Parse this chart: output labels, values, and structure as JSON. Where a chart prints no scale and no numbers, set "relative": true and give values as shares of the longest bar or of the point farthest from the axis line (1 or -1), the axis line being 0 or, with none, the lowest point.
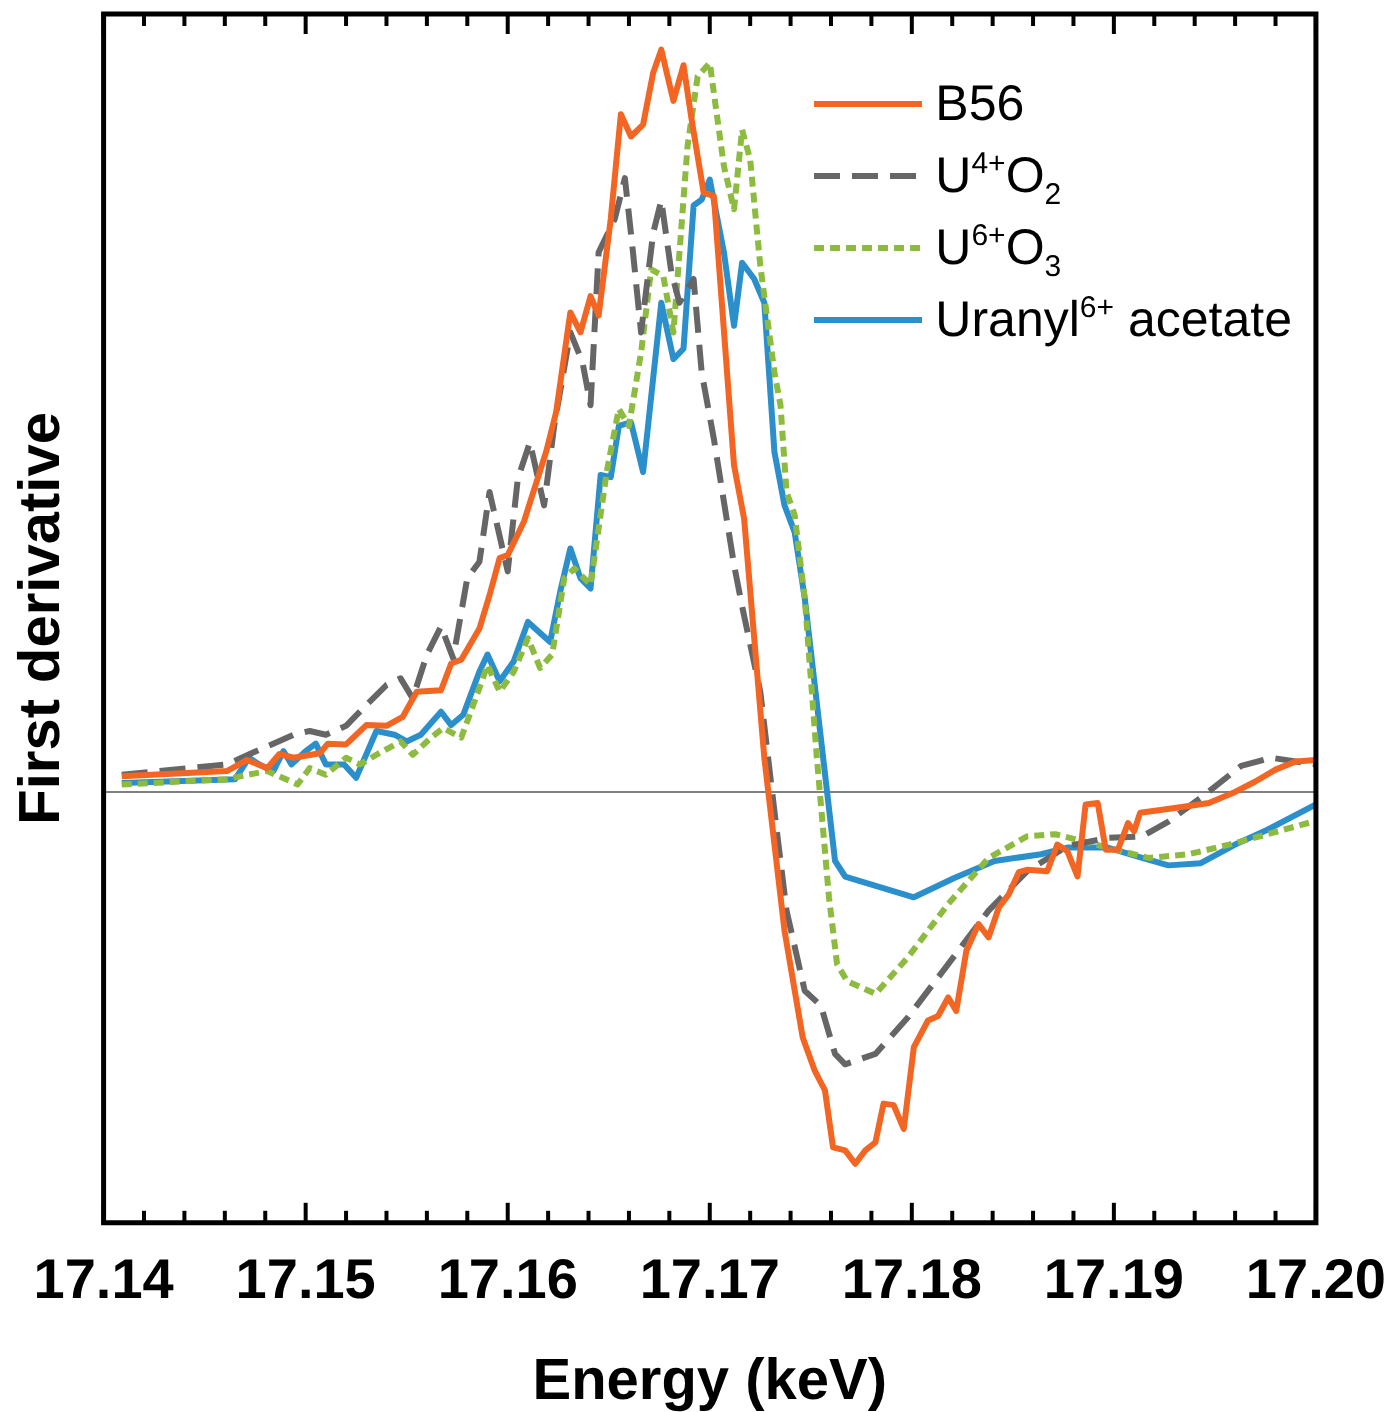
{
  "chart_data": {
    "type": "line",
    "xlabel": "Energy (keV)",
    "ylabel": "First derivative",
    "relative": true,
    "legend": "top right",
    "tick_labels": "x",
    "xlim": [
      17.14,
      17.2
    ],
    "xticks": [
      17.14,
      {
        "value": 17.142,
        "label": null
      },
      {
        "value": 17.144,
        "label": null
      },
      {
        "value": 17.146,
        "label": null
      },
      {
        "value": 17.148,
        "label": null
      },
      17.15,
      {
        "value": 17.152,
        "label": null
      },
      {
        "value": 17.154,
        "label": null
      },
      {
        "value": 17.156,
        "label": null
      },
      {
        "value": 17.158,
        "label": null
      },
      17.16,
      {
        "value": 17.162,
        "label": null
      },
      {
        "value": 17.164,
        "label": null
      },
      {
        "value": 17.166,
        "label": null
      },
      {
        "value": 17.168,
        "label": null
      },
      17.17,
      {
        "value": 17.172,
        "label": null
      },
      {
        "value": 17.174,
        "label": null
      },
      {
        "value": 17.176,
        "label": null
      },
      {
        "value": 17.178,
        "label": null
      },
      17.18,
      {
        "value": 17.182,
        "label": null
      },
      {
        "value": 17.184,
        "label": null
      },
      {
        "value": 17.186,
        "label": null
      },
      {
        "value": 17.188,
        "label": null
      },
      17.19,
      {
        "value": 17.192,
        "label": null
      },
      {
        "value": 17.194,
        "label": null
      },
      {
        "value": 17.196,
        "label": null
      },
      {
        "value": 17.198,
        "label": null
      },
      {
        "value": 17.2,
        "label": "17.20"
      }
    ],
    "ref_lines": [
      {
        "axis": "y",
        "value": 0,
        "color": "#808080"
      }
    ],
    "series": [
      {
        "name": "B56",
        "color": "#f26522",
        "line_style": "solid",
        "x": [
          17.1409,
          17.1461,
          17.1471,
          17.1481,
          17.1487,
          17.1494,
          17.1507,
          17.1511,
          17.152,
          17.153,
          17.154,
          17.1548,
          17.1555,
          17.1567,
          17.1572,
          17.1577,
          17.1586,
          17.1591,
          17.1596,
          17.16,
          17.1608,
          17.1619,
          17.1624,
          17.1631,
          17.1636,
          17.1641,
          17.1645,
          17.1651,
          17.1656,
          17.1661,
          17.1667,
          17.1672,
          17.1676,
          17.1682,
          17.1687,
          17.1691,
          17.1697,
          17.1702,
          17.1712,
          17.1717,
          17.1727,
          17.1737,
          17.1746,
          17.1752,
          17.1757,
          17.1761,
          17.1767,
          17.1772,
          17.1777,
          17.1782,
          17.1786,
          17.1791,
          17.1796,
          17.1801,
          17.1808,
          17.1813,
          17.1818,
          17.1822,
          17.1827,
          17.1833,
          17.1838,
          17.1843,
          17.1848,
          17.1853,
          17.1857,
          17.1867,
          17.1872,
          17.1877,
          17.1882,
          17.1886,
          17.1892,
          17.1896,
          17.1902,
          17.1907,
          17.191,
          17.1913,
          17.1924,
          17.1937,
          17.1947,
          17.196,
          17.197,
          17.198,
          17.199,
          17.2
        ],
        "values": [
          0.021,
          0.028,
          0.043,
          0.032,
          0.051,
          0.046,
          0.052,
          0.065,
          0.064,
          0.09,
          0.089,
          0.101,
          0.135,
          0.137,
          0.173,
          0.178,
          0.22,
          0.265,
          0.315,
          0.319,
          0.364,
          0.458,
          0.512,
          0.646,
          0.619,
          0.668,
          0.642,
          0.772,
          0.913,
          0.883,
          0.899,
          0.969,
          1.0,
          0.931,
          0.979,
          0.906,
          0.807,
          0.803,
          0.44,
          0.368,
          0.046,
          -0.187,
          -0.331,
          -0.376,
          -0.402,
          -0.479,
          -0.483,
          -0.501,
          -0.483,
          -0.472,
          -0.42,
          -0.422,
          -0.454,
          -0.344,
          -0.308,
          -0.302,
          -0.277,
          -0.295,
          -0.214,
          -0.178,
          -0.196,
          -0.156,
          -0.138,
          -0.108,
          -0.105,
          -0.107,
          -0.071,
          -0.08,
          -0.114,
          -0.017,
          -0.015,
          -0.078,
          -0.078,
          -0.042,
          -0.053,
          -0.028,
          -0.024,
          -0.019,
          -0.015,
          0.0,
          0.014,
          0.03,
          0.041,
          0.043
        ]
      },
      {
        "name": "U$^{4+}$O$_{2}$",
        "color": "#666666",
        "line_style": "dashed",
        "x": [
          17.1409,
          17.1461,
          17.1474,
          17.1484,
          17.1494,
          17.1502,
          17.151,
          17.152,
          17.153,
          17.154,
          17.1547,
          17.1553,
          17.156,
          17.1567,
          17.1573,
          17.158,
          17.1586,
          17.1591,
          17.16,
          17.1605,
          17.1611,
          17.1618,
          17.1623,
          17.1631,
          17.1637,
          17.1641,
          17.1645,
          17.1653,
          17.1658,
          17.1662,
          17.1666,
          17.1672,
          17.1676,
          17.1681,
          17.1685,
          17.1692,
          17.1696,
          17.1702,
          17.1712,
          17.1716,
          17.1725,
          17.1732,
          17.1738,
          17.1747,
          17.1755,
          17.1762,
          17.1767,
          17.1782,
          17.1798,
          17.1818,
          17.1838,
          17.1857,
          17.1877,
          17.1897,
          17.1914,
          17.1927,
          17.1943,
          17.1963,
          17.1978,
          17.199,
          17.2
        ],
        "values": [
          0.023,
          0.037,
          0.053,
          0.065,
          0.077,
          0.082,
          0.077,
          0.089,
          0.117,
          0.144,
          0.153,
          0.126,
          0.185,
          0.223,
          0.18,
          0.288,
          0.31,
          0.404,
          0.297,
          0.422,
          0.471,
          0.386,
          0.493,
          0.619,
          0.579,
          0.521,
          0.727,
          0.772,
          0.827,
          0.727,
          0.619,
          0.753,
          0.797,
          0.7,
          0.659,
          0.691,
          0.565,
          0.476,
          0.306,
          0.25,
          0.135,
          -0.026,
          -0.16,
          -0.268,
          -0.288,
          -0.353,
          -0.367,
          -0.353,
          -0.304,
          -0.232,
          -0.16,
          -0.107,
          -0.073,
          -0.062,
          -0.06,
          -0.04,
          -0.008,
          0.035,
          0.046,
          0.041,
          0.037
        ]
      },
      {
        "name": "U$^{6+}$O$_{3}$",
        "color": "#8dbb3f",
        "line_style": "dotted",
        "x": [
          17.1409,
          17.1461,
          17.1471,
          17.1481,
          17.1496,
          17.1502,
          17.151,
          17.152,
          17.1527,
          17.1535,
          17.1547,
          17.1553,
          17.1562,
          17.1568,
          17.1577,
          17.1586,
          17.159,
          17.1596,
          17.1603,
          17.161,
          17.1616,
          17.1622,
          17.1628,
          17.1633,
          17.1641,
          17.1649,
          17.1655,
          17.166,
          17.1666,
          17.1671,
          17.1677,
          17.1682,
          17.1689,
          17.1694,
          17.17,
          17.1707,
          17.1712,
          17.1716,
          17.172,
          17.1725,
          17.1732,
          17.1735,
          17.1738,
          17.1742,
          17.1747,
          17.1753,
          17.1759,
          17.1763,
          17.1768,
          17.1782,
          17.1798,
          17.1818,
          17.1838,
          17.1857,
          17.1871,
          17.1891,
          17.1917,
          17.1937,
          17.1957,
          17.1976,
          17.2
        ],
        "values": [
          0.01,
          0.017,
          0.023,
          0.028,
          0.01,
          0.032,
          0.023,
          0.046,
          0.037,
          0.05,
          0.068,
          0.05,
          0.073,
          0.086,
          0.073,
          0.14,
          0.171,
          0.135,
          0.162,
          0.207,
          0.167,
          0.185,
          0.288,
          0.301,
          0.279,
          0.431,
          0.516,
          0.493,
          0.592,
          0.704,
          0.695,
          0.619,
          0.87,
          0.964,
          0.982,
          0.843,
          0.785,
          0.892,
          0.852,
          0.709,
          0.565,
          0.521,
          0.404,
          0.373,
          0.261,
          0.046,
          -0.142,
          -0.232,
          -0.255,
          -0.272,
          -0.223,
          -0.151,
          -0.089,
          -0.06,
          -0.057,
          -0.071,
          -0.089,
          -0.084,
          -0.071,
          -0.057,
          -0.039
        ]
      },
      {
        "name": "Uranyl$^{6+}$ acetate",
        "color": "#2b8fcc",
        "line_style": "solid",
        "x": [
          17.1409,
          17.1465,
          17.1472,
          17.1477,
          17.1484,
          17.1489,
          17.1493,
          17.15,
          17.1505,
          17.151,
          17.1519,
          17.1525,
          17.1535,
          17.1544,
          17.155,
          17.1557,
          17.1567,
          17.1572,
          17.1578,
          17.1586,
          17.159,
          17.1596,
          17.1603,
          17.161,
          17.1621,
          17.1626,
          17.1631,
          17.1636,
          17.1641,
          17.1646,
          17.1651,
          17.1655,
          17.1661,
          17.1667,
          17.1676,
          17.1682,
          17.1687,
          17.1692,
          17.1696,
          17.17,
          17.1707,
          17.1712,
          17.1716,
          17.1722,
          17.1727,
          17.1732,
          17.1737,
          17.1742,
          17.1747,
          17.1762,
          17.1767,
          17.1801,
          17.1821,
          17.1841,
          17.1864,
          17.1877,
          17.1897,
          17.1914,
          17.1927,
          17.1943,
          17.196,
          17.1976,
          17.2
        ],
        "values": [
          0.012,
          0.017,
          0.046,
          0.037,
          0.028,
          0.055,
          0.037,
          0.055,
          0.065,
          0.037,
          0.037,
          0.019,
          0.082,
          0.077,
          0.068,
          0.077,
          0.108,
          0.09,
          0.104,
          0.162,
          0.185,
          0.149,
          0.176,
          0.229,
          0.202,
          0.27,
          0.328,
          0.288,
          0.274,
          0.427,
          0.424,
          0.493,
          0.498,
          0.431,
          0.659,
          0.583,
          0.597,
          0.79,
          0.798,
          0.825,
          0.727,
          0.628,
          0.713,
          0.691,
          0.659,
          0.458,
          0.386,
          0.35,
          0.261,
          -0.093,
          -0.114,
          -0.142,
          -0.116,
          -0.093,
          -0.084,
          -0.075,
          -0.075,
          -0.089,
          -0.099,
          -0.096,
          -0.071,
          -0.051,
          -0.017
        ]
      }
    ]
  }
}
